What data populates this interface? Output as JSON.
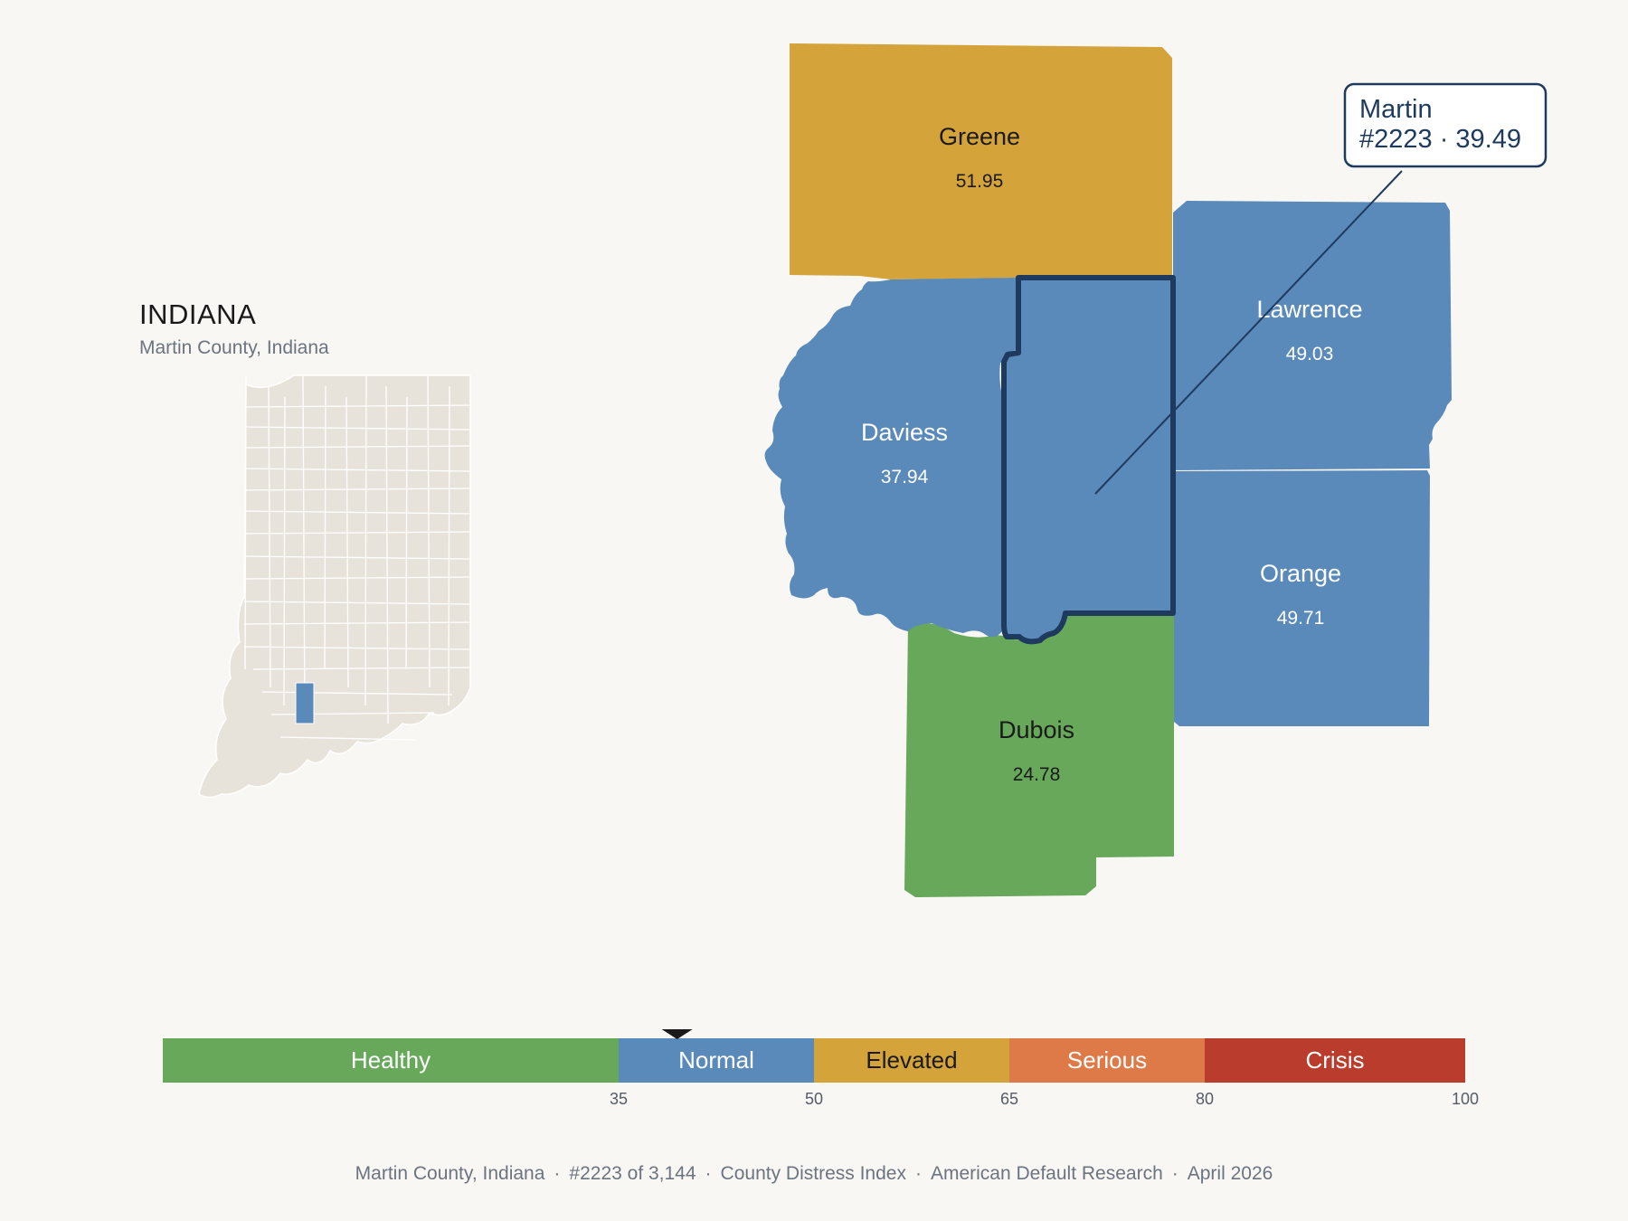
{
  "state": {
    "title": "INDIANA",
    "subtitle": "Martin County, Indiana"
  },
  "callout": {
    "line1": "Martin",
    "line2": "#2223 · 39.49"
  },
  "counties": [
    {
      "name": "Greene",
      "value": "51.95",
      "color": "#d4a43b",
      "text_color": "#1a1a1a"
    },
    {
      "name": "Lawrence",
      "value": "49.03",
      "color": "#5a8aba",
      "text_color": "#ffffff"
    },
    {
      "name": "Daviess",
      "value": "37.94",
      "color": "#5a8aba",
      "text_color": "#ffffff"
    },
    {
      "name": "Orange",
      "value": "49.71",
      "color": "#5a8aba",
      "text_color": "#ffffff"
    },
    {
      "name": "Dubois",
      "value": "24.78",
      "color": "#67a85a",
      "text_color": "#1a1a1a"
    }
  ],
  "highlight_county": {
    "name": "Martin",
    "color": "#5a8aba",
    "outline": "#1e3a5f"
  },
  "scale": {
    "min": 0,
    "max": 100,
    "marker_value": 39.49,
    "segments": [
      {
        "label": "Healthy",
        "from": 0,
        "to": 35,
        "color": "#67a85a",
        "text_color": "#ffffff"
      },
      {
        "label": "Normal",
        "from": 35,
        "to": 50,
        "color": "#5a8aba",
        "text_color": "#ffffff"
      },
      {
        "label": "Elevated",
        "from": 50,
        "to": 65,
        "color": "#d4a43b",
        "text_color": "#1a1a1a"
      },
      {
        "label": "Serious",
        "from": 65,
        "to": 80,
        "color": "#dd7a48",
        "text_color": "#ffffff"
      },
      {
        "label": "Crisis",
        "from": 80,
        "to": 100,
        "color": "#b93c2c",
        "text_color": "#ffffff"
      }
    ],
    "ticks": [
      "35",
      "50",
      "65",
      "80",
      "100"
    ]
  },
  "footer": [
    "Martin County, Indiana",
    "#2223 of 3,144",
    "County Distress Index",
    "American Default Research",
    "April 2026"
  ],
  "colors": {
    "inset_fill": "#e8e3da",
    "inset_stroke": "#ffffff",
    "inset_highlight": "#5a8aba"
  }
}
